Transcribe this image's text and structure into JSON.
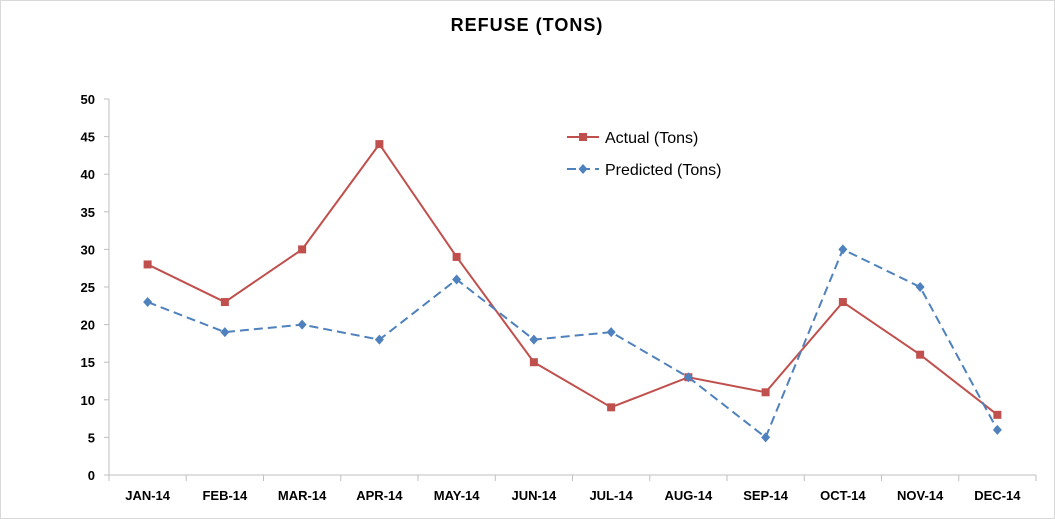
{
  "chart_data": {
    "type": "line",
    "title": "REFUSE (TONS)",
    "xlabel": "",
    "ylabel": "",
    "categories": [
      "JAN-14",
      "FEB-14",
      "MAR-14",
      "APR-14",
      "MAY-14",
      "JUN-14",
      "JUL-14",
      "AUG-14",
      "SEP-14",
      "OCT-14",
      "NOV-14",
      "DEC-14"
    ],
    "ylim": [
      0,
      50
    ],
    "yticks": [
      0,
      5,
      10,
      15,
      20,
      25,
      30,
      35,
      40,
      45,
      50
    ],
    "grid": false,
    "legend_position": "top-right",
    "series": [
      {
        "name": "Actual (Tons)",
        "color": "#c0504d",
        "line_style": "solid",
        "marker": "square",
        "values": [
          28,
          23,
          30,
          44,
          29,
          15,
          9,
          13,
          11,
          23,
          16,
          8
        ]
      },
      {
        "name": "Predicted (Tons)",
        "color": "#4f81bd",
        "line_style": "dashed",
        "marker": "diamond",
        "values": [
          23,
          19,
          20,
          18,
          26,
          18,
          19,
          13,
          5,
          30,
          25,
          6
        ]
      }
    ]
  }
}
